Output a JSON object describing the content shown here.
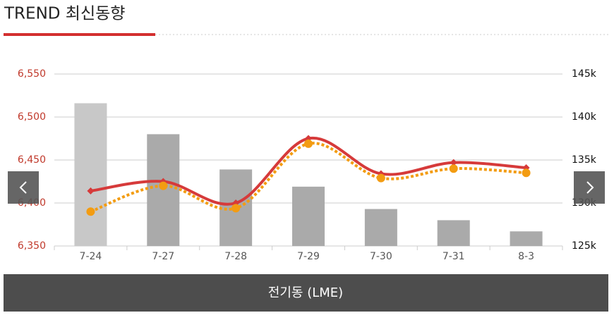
{
  "header": {
    "title": "TREND 최신동향"
  },
  "chart_data": {
    "type": "combo",
    "categories": [
      "7-24",
      "7-27",
      "7-28",
      "7-29",
      "7-30",
      "7-31",
      "8-3"
    ],
    "series": [
      {
        "type": "bar",
        "axis": "y2",
        "colors": [
          "#c8c8c8",
          "#aaaaaa",
          "#aaaaaa",
          "#aaaaaa",
          "#aaaaaa",
          "#aaaaaa",
          "#aaaaaa"
        ],
        "values": [
          141600,
          138000,
          133900,
          131900,
          129300,
          128000,
          126700
        ]
      },
      {
        "type": "line",
        "color": "#d63a3a",
        "style": "solid",
        "values": [
          6414,
          6425,
          6400,
          6475,
          6434,
          6447,
          6441
        ]
      },
      {
        "type": "line",
        "color": "#f39c12",
        "style": "dotted",
        "values": [
          6390,
          6420,
          6394,
          6469,
          6429,
          6440,
          6435
        ]
      }
    ],
    "ylim": [
      6350,
      6550
    ],
    "yticks": [
      {
        "value": 6350,
        "label": "6,350"
      },
      {
        "value": 6400,
        "label": "6,400"
      },
      {
        "value": 6450,
        "label": "6,450"
      },
      {
        "value": 6500,
        "label": "6,500"
      },
      {
        "value": 6550,
        "label": "6,550"
      }
    ],
    "y2lim": [
      125000,
      145000
    ],
    "y2ticks": [
      {
        "value": 125000,
        "label": "125k"
      },
      {
        "value": 130000,
        "label": "130k"
      },
      {
        "value": 135000,
        "label": "135k"
      },
      {
        "value": 140000,
        "label": "140k"
      },
      {
        "value": 145000,
        "label": "145k"
      }
    ],
    "grid": true,
    "caption": "전기동 (LME)"
  }
}
